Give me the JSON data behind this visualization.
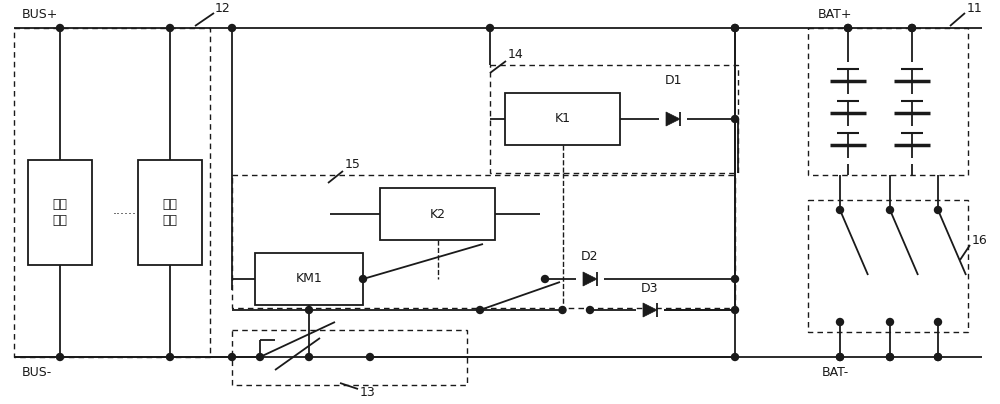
{
  "bg_color": "#ffffff",
  "line_color": "#1a1a1a",
  "figsize": [
    10.0,
    4.04
  ],
  "dpi": 100,
  "labels": {
    "BUS_plus": "BUS+",
    "BUS_minus": "BUS-",
    "BAT_plus": "BAT+",
    "BAT_minus": "BAT-",
    "ref_12": "12",
    "ref_13": "13",
    "ref_14": "14",
    "ref_15": "15",
    "ref_16": "16",
    "ref_11": "11",
    "K1": "K1",
    "K2": "K2",
    "KM1": "KM1",
    "D1": "D1",
    "D2": "D2",
    "D3": "D3",
    "module": "整流\n模块",
    "dots": "......"
  }
}
